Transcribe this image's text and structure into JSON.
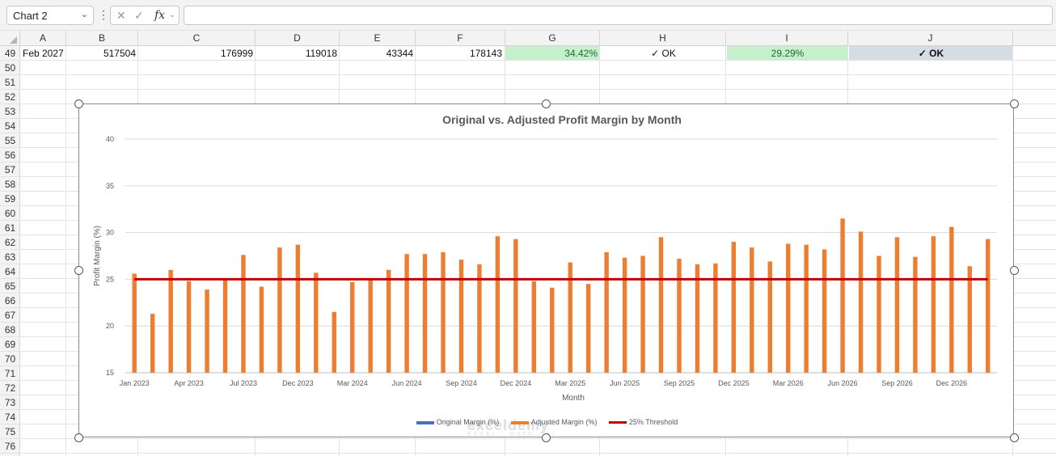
{
  "formula_bar": {
    "namebox": "Chart 2",
    "more": "⋮",
    "cancel": "✕",
    "enter": "✓",
    "fx": "fx",
    "formula": ""
  },
  "columns": [
    "A",
    "B",
    "C",
    "D",
    "E",
    "F",
    "G",
    "H",
    "I",
    "J"
  ],
  "rows": [
    "49",
    "50",
    "51",
    "52",
    "53",
    "54",
    "55",
    "56",
    "57",
    "58",
    "59",
    "60",
    "61",
    "62",
    "63",
    "64",
    "65",
    "66",
    "67",
    "68",
    "69",
    "70",
    "71",
    "72",
    "73",
    "74",
    "75",
    "76"
  ],
  "row49": {
    "A": "Feb 2027",
    "B": "517504",
    "C": "176999",
    "D": "119018",
    "E": "43344",
    "F": "178143",
    "G": "34.42%",
    "H": "✓ OK",
    "I": "29.29%",
    "J": "✓ OK"
  },
  "colors": {
    "bar": "#ed7d31",
    "original": "#4472c4",
    "threshold": "#c00000",
    "green_fill": "#c6efce",
    "selected_fill": "#d6dce4"
  },
  "chart_data": {
    "type": "bar",
    "title": "Original vs. Adjusted Profit Margin by Month",
    "xlabel": "Month",
    "ylabel": "Profit Margin (%)",
    "ylim": [
      15,
      40
    ],
    "yticks": [
      15,
      20,
      25,
      30,
      35,
      40
    ],
    "xtick_labels": [
      "Jan 2023",
      "Apr 2023",
      "Jul 2023",
      "Dec 2023",
      "Mar 2024",
      "Jun 2024",
      "Sep 2024",
      "Dec 2024",
      "Mar 2025",
      "Jun 2025",
      "Sep 2025",
      "Dec 2025",
      "Mar 2026",
      "Jun 2026",
      "Sep 2026",
      "Dec 2026"
    ],
    "legend_position": "bottom",
    "series": [
      {
        "name": "Original Margin (%)",
        "color": "#4472c4",
        "values": []
      },
      {
        "name": "Adjusted Margin (%)",
        "color": "#ed7d31",
        "values": [
          25.6,
          21.3,
          26.0,
          24.8,
          23.9,
          24.9,
          27.6,
          24.2,
          28.4,
          28.7,
          25.7,
          21.5,
          24.7,
          24.9,
          26.0,
          27.7,
          27.7,
          27.9,
          27.1,
          26.6,
          29.6,
          29.3,
          24.8,
          24.1,
          26.8,
          24.5,
          27.9,
          27.3,
          27.5,
          29.5,
          27.2,
          26.6,
          26.7,
          29.0,
          28.4,
          26.9,
          28.8,
          28.7,
          28.2,
          31.5,
          30.1,
          27.5,
          29.5,
          27.4,
          29.6,
          30.6,
          26.4,
          29.3
        ]
      },
      {
        "name": "25% Threshold",
        "color": "#c00000",
        "type": "line",
        "value": 25
      }
    ]
  },
  "watermark": {
    "text": "exceldemy",
    "sub": "EXCEL · DATA · BI"
  }
}
